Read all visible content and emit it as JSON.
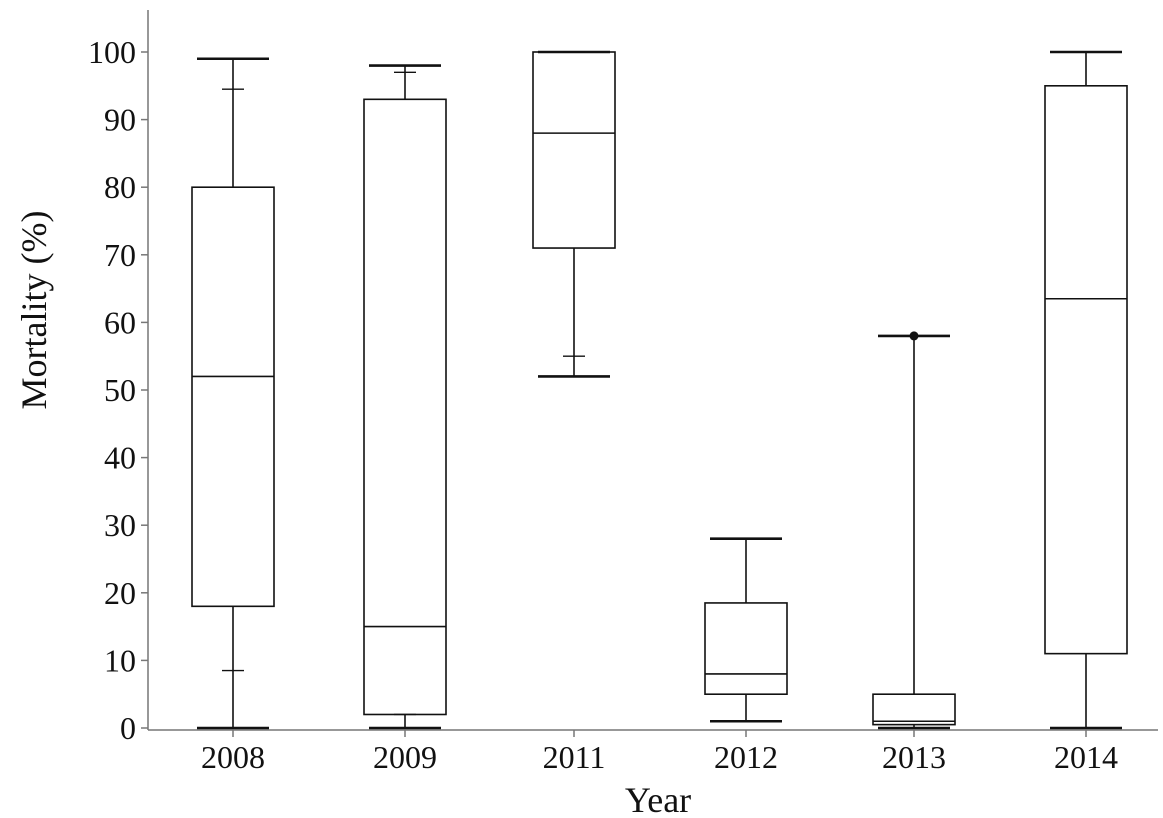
{
  "chart_data": {
    "type": "box",
    "xlabel": "Year",
    "ylabel": "Mortality (%)",
    "ylim": [
      0,
      100
    ],
    "yticks": [
      0,
      10,
      20,
      30,
      40,
      50,
      60,
      70,
      80,
      90,
      100
    ],
    "categories": [
      "2008",
      "2009",
      "2011",
      "2012",
      "2013",
      "2014"
    ],
    "boxes": [
      {
        "category": "2008",
        "min": 0,
        "q1": 18,
        "median": 52,
        "q3": 80,
        "max": 99,
        "p10": 8.5,
        "p90": 94.5
      },
      {
        "category": "2009",
        "min": 0,
        "q1": 2,
        "median": 15,
        "q3": 93,
        "max": 98,
        "p10": 2,
        "p90": 97
      },
      {
        "category": "2011",
        "min": 52,
        "q1": 71,
        "median": 88,
        "q3": 100,
        "max": 100,
        "p10": 55,
        "p90": 100
      },
      {
        "category": "2012",
        "min": 1,
        "q1": 5,
        "median": 8,
        "q3": 18.5,
        "max": 28
      },
      {
        "category": "2013",
        "min": 0,
        "q1": 0.5,
        "median": 1,
        "q3": 5,
        "max": 58,
        "outliers": [
          58
        ]
      },
      {
        "category": "2014",
        "min": 0,
        "q1": 11,
        "median": 63.5,
        "q3": 95,
        "max": 100
      }
    ],
    "grid": false,
    "legend": "none"
  }
}
